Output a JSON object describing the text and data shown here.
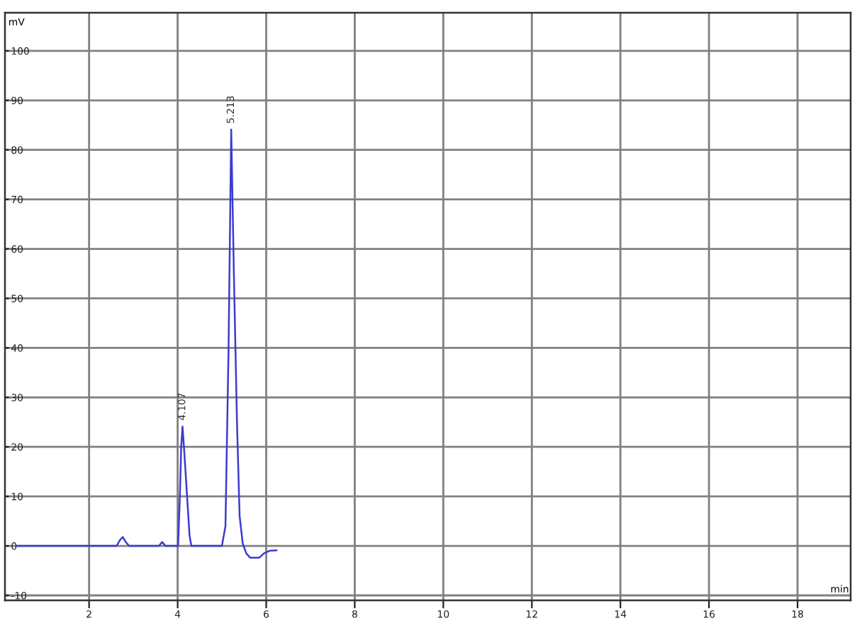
{
  "chart_data": {
    "type": "line",
    "xlabel": "min",
    "ylabel": "mV",
    "x": [
      0.35,
      1.4,
      1.5,
      2.62,
      2.7,
      2.76,
      2.82,
      2.9,
      3.0,
      3.58,
      3.65,
      3.72,
      3.85,
      4.01,
      4.05,
      4.08,
      4.11,
      4.15,
      4.22,
      4.27,
      4.31,
      4.6,
      5.0,
      5.08,
      5.15,
      5.21,
      5.27,
      5.34,
      5.4,
      5.47,
      5.55,
      5.64,
      5.84,
      5.95,
      6.07,
      6.23
    ],
    "series": [
      {
        "color": "#3b3bd0",
        "values": [
          0,
          0,
          0,
          0,
          1.2,
          1.8,
          0.9,
          0,
          0,
          0,
          0.8,
          0,
          0,
          0,
          10,
          20,
          24.1,
          19,
          9,
          2,
          0,
          0,
          0,
          4,
          40,
          84.1,
          55,
          25,
          6,
          0.5,
          -1.5,
          -2.4,
          -2.4,
          -1.5,
          -1,
          -0.9
        ]
      }
    ],
    "xlim": [
      0.1,
      19.2
    ],
    "ylim": [
      -11,
      107.7
    ],
    "xticks": [
      2,
      4,
      6,
      8,
      10,
      12,
      14,
      16,
      18
    ],
    "yticks": [
      -10,
      0,
      10,
      20,
      30,
      40,
      50,
      60,
      70,
      80,
      90,
      100
    ],
    "grid": true,
    "line_style": "solid",
    "annotations": [
      {
        "text": "4.107",
        "x": 4.11,
        "y": 24.1
      },
      {
        "text": "5.213",
        "x": 5.21,
        "y": 84.1
      }
    ]
  }
}
